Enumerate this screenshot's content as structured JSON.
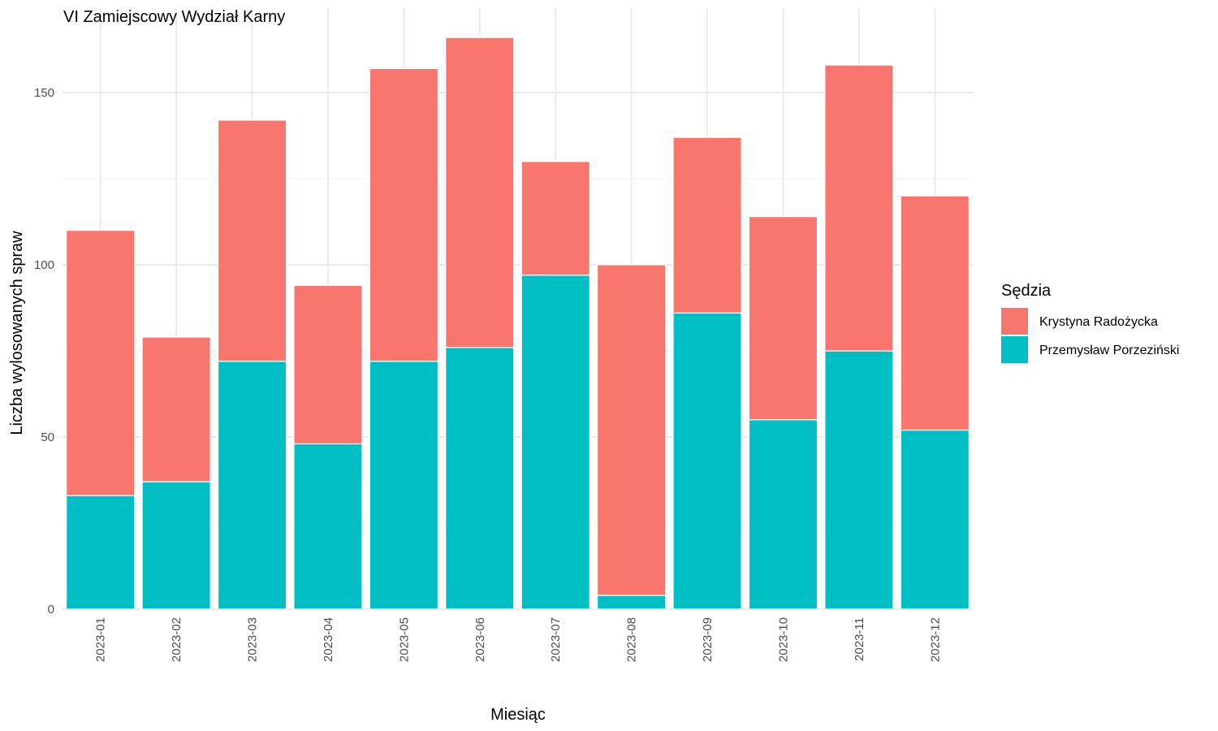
{
  "chart_data": {
    "type": "bar",
    "stacked": true,
    "title": "VI Zamiejscowy Wydział Karny",
    "xlabel": "Miesiąc",
    "ylabel": "Liczba wylosowanych spraw",
    "ylim": [
      0,
      170
    ],
    "yticks": [
      0,
      50,
      100,
      150
    ],
    "grid": true,
    "legend_position": "right",
    "legend_title": "Sędzia",
    "categories": [
      "2023-01",
      "2023-02",
      "2023-03",
      "2023-04",
      "2023-05",
      "2023-06",
      "2023-07",
      "2023-08",
      "2023-09",
      "2023-10",
      "2023-11",
      "2023-12"
    ],
    "series": [
      {
        "name": "Krystyna Radożycka",
        "color": "#F8766D",
        "values": [
          77,
          42,
          70,
          46,
          85,
          90,
          33,
          96,
          51,
          59,
          83,
          68
        ]
      },
      {
        "name": "Przemysław Porzeziński",
        "color": "#00BFC4",
        "values": [
          33,
          37,
          72,
          48,
          72,
          76,
          97,
          4,
          86,
          55,
          75,
          52
        ]
      }
    ]
  }
}
